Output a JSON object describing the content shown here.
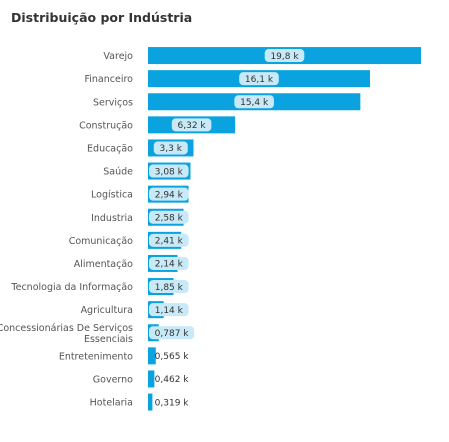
{
  "chart_data": {
    "type": "bar",
    "orientation": "horizontal",
    "title": "Distribuição por Indústria",
    "xlabel": "",
    "ylabel": "",
    "grid": false,
    "legend": "none",
    "bar_color": "#0aa3e0",
    "label_bg_color": "#c8e9f7",
    "categories": [
      "Varejo",
      "Financeiro",
      "Serviços",
      "Construção",
      "Educação",
      "Saúde",
      "Logística",
      "Industria",
      "Comunicação",
      "Alimentação",
      "Tecnologia da Informação",
      "Agricultura",
      "Concessionárias De Serviços Essenciais",
      "Entretenimento",
      "Governo",
      "Hotelaria"
    ],
    "category_lines": [
      [
        "Varejo"
      ],
      [
        "Financeiro"
      ],
      [
        "Serviços"
      ],
      [
        "Construção"
      ],
      [
        "Educação"
      ],
      [
        "Saúde"
      ],
      [
        "Logística"
      ],
      [
        "Industria"
      ],
      [
        "Comunicação"
      ],
      [
        "Alimentação"
      ],
      [
        "Tecnologia da Informação"
      ],
      [
        "Agricultura"
      ],
      [
        "Concessionárias De Serviços",
        "Essenciais"
      ],
      [
        "Entretenimento"
      ],
      [
        "Governo"
      ],
      [
        "Hotelaria"
      ]
    ],
    "values": [
      19800,
      16100,
      15400,
      6320,
      3300,
      3080,
      2940,
      2580,
      2410,
      2140,
      1850,
      1140,
      787,
      565,
      462,
      319
    ],
    "value_labels": [
      "19,8 k",
      "16,1 k",
      "15,4 k",
      "6,32 k",
      "3,3 k",
      "3,08 k",
      "2,94 k",
      "2,58 k",
      "2,41 k",
      "2,14 k",
      "1,85 k",
      "1,14 k",
      "0,787 k",
      "0,565 k",
      "0,462 k",
      "0,319 k"
    ]
  }
}
